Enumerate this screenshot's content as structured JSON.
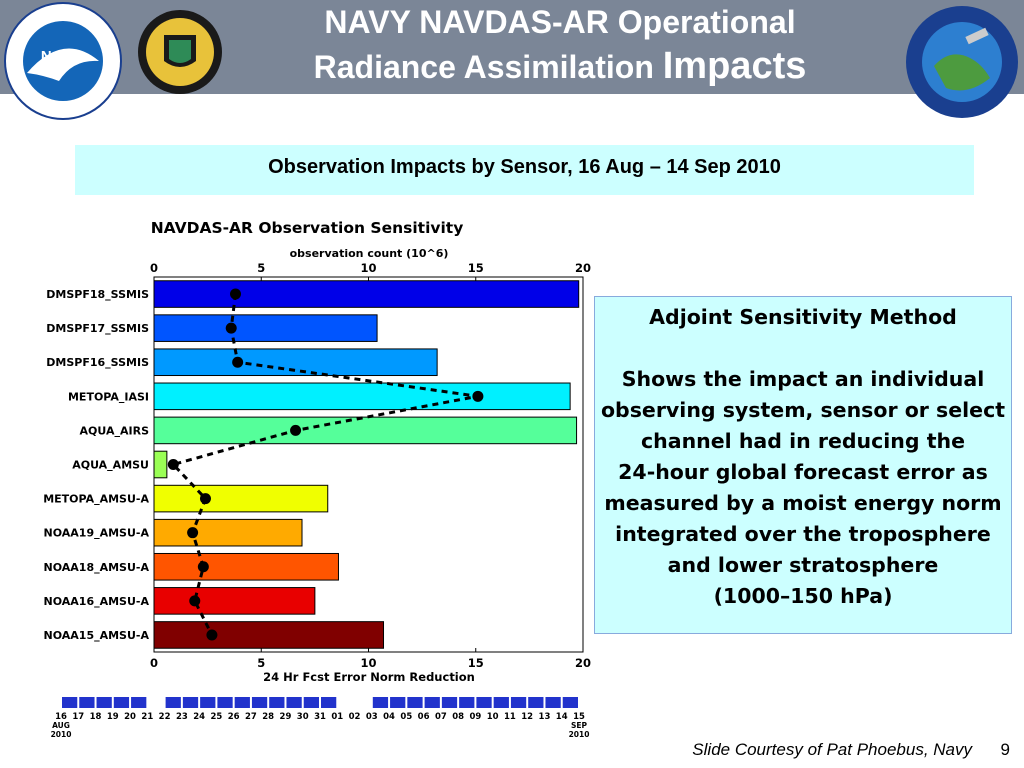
{
  "header": {
    "title_line1": "NAVY NAVDAS-AR Operational",
    "title_line2_a": "Radiance Assimilation",
    "title_line2_b": "Impacts",
    "color": "#7b8697"
  },
  "subtitle": "Observation Impacts by Sensor, 16 Aug – 14 Sep 2010",
  "side_panel": {
    "heading": "Adjoint Sensitivity Method",
    "body": "Shows the impact an individual observing system, sensor or select channel had in reducing the           24-hour global forecast error as measured by a moist energy norm integrated over the troposphere and lower stratosphere              (1000–150 hPa)"
  },
  "footer": {
    "credit": "Slide Courtesy of Pat Phoebus, Navy",
    "page": "9"
  },
  "logos": [
    "noaa-logo",
    "naval-research-laboratory-logo",
    "jcsda-logo"
  ],
  "chart_data": {
    "type": "bar",
    "title": "NAVDAS-AR Observation Sensitivity",
    "top_axis_label": "observation count (10^6)",
    "xlabel": "24 Hr Fcst Error Norm Reduction",
    "xlim": [
      0,
      20
    ],
    "ticks": [
      "0",
      "5",
      "10",
      "15",
      "20"
    ],
    "categories": [
      "DMSPF18_SSMIS",
      "DMSPF17_SSMIS",
      "DMSPF16_SSMIS",
      "METOPA_IASI",
      "AQUA_AIRS",
      "AQUA_AMSU",
      "METOPA_AMSU-A",
      "NOAA19_AMSU-A",
      "NOAA18_AMSU-A",
      "NOAA16_AMSU-A",
      "NOAA15_AMSU-A"
    ],
    "values": [
      19.8,
      10.4,
      13.2,
      19.4,
      19.7,
      0.6,
      8.1,
      6.9,
      8.6,
      7.5,
      10.7
    ],
    "observation_counts": [
      3.8,
      3.6,
      3.9,
      15.1,
      6.6,
      0.9,
      2.4,
      1.8,
      2.3,
      1.9,
      2.7
    ],
    "colors": [
      "#0000e8",
      "#0055ff",
      "#0099ff",
      "#00f0ff",
      "#55ff9a",
      "#9aff55",
      "#f0ff00",
      "#ffaa00",
      "#ff5500",
      "#e80000",
      "#800000"
    ],
    "timeline": {
      "dates": [
        "16",
        "17",
        "18",
        "19",
        "20",
        "21",
        "22",
        "23",
        "24",
        "25",
        "26",
        "27",
        "28",
        "29",
        "30",
        "31",
        "01",
        "02",
        "03",
        "04",
        "05",
        "06",
        "07",
        "08",
        "09",
        "10",
        "11",
        "12",
        "13",
        "14",
        "15"
      ],
      "start_label": "AUG\n2010",
      "end_label": "SEP\n2010",
      "bar_color": "#2233cc"
    }
  }
}
